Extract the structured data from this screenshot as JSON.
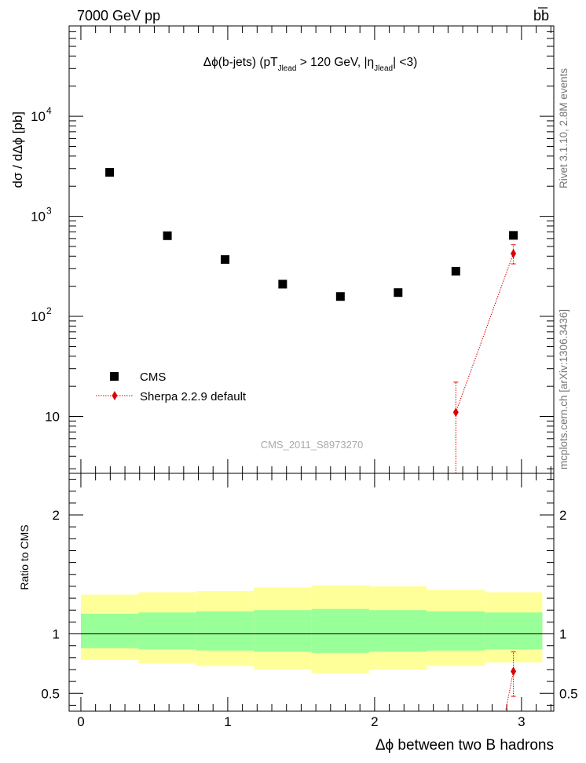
{
  "header": {
    "energy_label": "7000 GeV pp",
    "process_main": "bb",
    "process_bar": "b"
  },
  "side_labels": {
    "rivet": "Rivet 3.1.10,  2.8M events",
    "mcplots": "mcplots.cern.ch [arXiv:1306.3436]"
  },
  "analysis_id": "CMS_2011_S8973270",
  "chart_data": [
    {
      "type": "scatter",
      "panel": "main",
      "title_parts": [
        "Δϕ(b-jets) (pT",
        "Jlead",
        " >  120 GeV, |η",
        "Jlead",
        "| <3)"
      ],
      "ylabel": "dσ / dΔϕ [pb]",
      "yscale": "log",
      "xlim": [
        -0.08,
        3.22
      ],
      "ylim": [
        2.7,
        80000
      ],
      "y_ticks": [
        {
          "value": 10,
          "label": "10"
        },
        {
          "value": 100,
          "base": "10",
          "exp": "2"
        },
        {
          "value": 1000,
          "base": "10",
          "exp": "3"
        },
        {
          "value": 10000,
          "base": "10",
          "exp": "4"
        }
      ],
      "series": [
        {
          "name": "CMS",
          "marker": "square",
          "color": "#000000",
          "x": [
            0.196,
            0.589,
            0.982,
            1.374,
            1.767,
            2.16,
            2.553,
            2.945
          ],
          "y": [
            2750,
            640,
            370,
            210,
            158,
            173,
            283,
            645
          ]
        },
        {
          "name": "Sherpa 2.2.9 default",
          "marker": "diamond",
          "color": "#dd0000",
          "x": [
            2.553,
            2.945
          ],
          "y": [
            11,
            425
          ],
          "err_low": [
            11,
            90
          ],
          "err_high": [
            11,
            95
          ]
        }
      ]
    },
    {
      "type": "scatter",
      "panel": "ratio",
      "ylabel": "Ratio to CMS",
      "xlabel": "Δϕ between two B hadrons",
      "xlim": [
        -0.08,
        3.22
      ],
      "ylim": [
        0.35,
        2.35
      ],
      "x_ticks": [
        0,
        1,
        2,
        3
      ],
      "y_ticks": [
        {
          "value": 0.5,
          "label": "0.5"
        },
        {
          "value": 1,
          "label": "1"
        },
        {
          "value": 2,
          "label": "2"
        }
      ],
      "bands": {
        "bin_edges": [
          0,
          0.393,
          0.785,
          1.178,
          1.571,
          1.963,
          2.356,
          2.749,
          3.142
        ],
        "outer_low": [
          0.78,
          0.75,
          0.73,
          0.7,
          0.67,
          0.7,
          0.73,
          0.76
        ],
        "outer_high": [
          1.33,
          1.35,
          1.36,
          1.39,
          1.41,
          1.4,
          1.37,
          1.35
        ],
        "inner_low": [
          0.88,
          0.87,
          0.86,
          0.85,
          0.84,
          0.85,
          0.86,
          0.87
        ],
        "inner_high": [
          1.17,
          1.18,
          1.19,
          1.2,
          1.21,
          1.2,
          1.19,
          1.18
        ],
        "outer_color": "#ffff99",
        "inner_color": "#99ff99"
      },
      "series": [
        {
          "name": "Sherpa 2.2.9 default",
          "color": "#dd0000",
          "x": [
            2.945
          ],
          "y": [
            0.685
          ],
          "err_low": [
            0.21
          ],
          "err_high": [
            0.165
          ]
        }
      ]
    }
  ]
}
